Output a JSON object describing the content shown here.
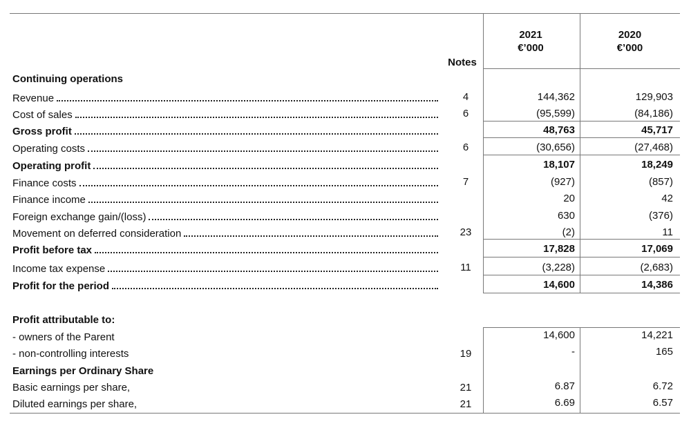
{
  "header": {
    "notes_label": "Notes",
    "col_2021_year": "2021",
    "col_2021_unit": "€’000",
    "col_2020_year": "2020",
    "col_2020_unit": "€’000"
  },
  "section_title": "Continuing operations",
  "rows": [
    {
      "label": "Revenue",
      "note": "4",
      "v2021": "144,362",
      "v2020": "129,903",
      "bold": false
    },
    {
      "label": "Cost of sales",
      "note": "6",
      "v2021": "(95,599)",
      "v2020": "(84,186)",
      "bold": false
    },
    {
      "label": "Gross profit",
      "note": "",
      "v2021": "48,763",
      "v2020": "45,717",
      "bold": true
    },
    {
      "label": "Operating costs",
      "note": "6",
      "v2021": "(30,656)",
      "v2020": "(27,468)",
      "bold": false
    },
    {
      "label": "Operating profit",
      "note": "",
      "v2021": "18,107",
      "v2020": "18,249",
      "bold": true
    },
    {
      "label": "Finance costs",
      "note": "7",
      "v2021": "(927)",
      "v2020": "(857)",
      "bold": false
    },
    {
      "label": "Finance income",
      "note": "",
      "v2021": "20",
      "v2020": "42",
      "bold": false
    },
    {
      "label": "Foreign exchange gain/(loss)",
      "note": "",
      "v2021": "630",
      "v2020": "(376)",
      "bold": false
    },
    {
      "label": "Movement on deferred consideration",
      "note": "23",
      "v2021": "(2)",
      "v2020": "11",
      "bold": false
    },
    {
      "label": "Profit before tax",
      "note": "",
      "v2021": "17,828",
      "v2020": "17,069",
      "bold": true
    },
    {
      "label": "Income tax expense",
      "note": "11",
      "v2021": "(3,228)",
      "v2020": "(2,683)",
      "bold": false
    },
    {
      "label": "Profit for the period",
      "note": "",
      "v2021": "14,600",
      "v2020": "14,386",
      "bold": true
    }
  ],
  "attributable": {
    "title": "Profit attributable to:",
    "rows": [
      {
        "label": "- owners of the Parent",
        "note": "",
        "v2021": "14,600",
        "v2020": "14,221"
      },
      {
        "label": "- non-controlling interests",
        "note": "19",
        "v2021": "-",
        "v2020": "165"
      }
    ]
  },
  "eps": {
    "title": "Earnings per Ordinary Share",
    "rows": [
      {
        "label": "Basic earnings per share,",
        "note": "21",
        "v2021": "6.87",
        "v2020": "6.72"
      },
      {
        "label": "Diluted earnings per share,",
        "note": "21",
        "v2021": "6.69",
        "v2020": "6.57"
      }
    ]
  }
}
